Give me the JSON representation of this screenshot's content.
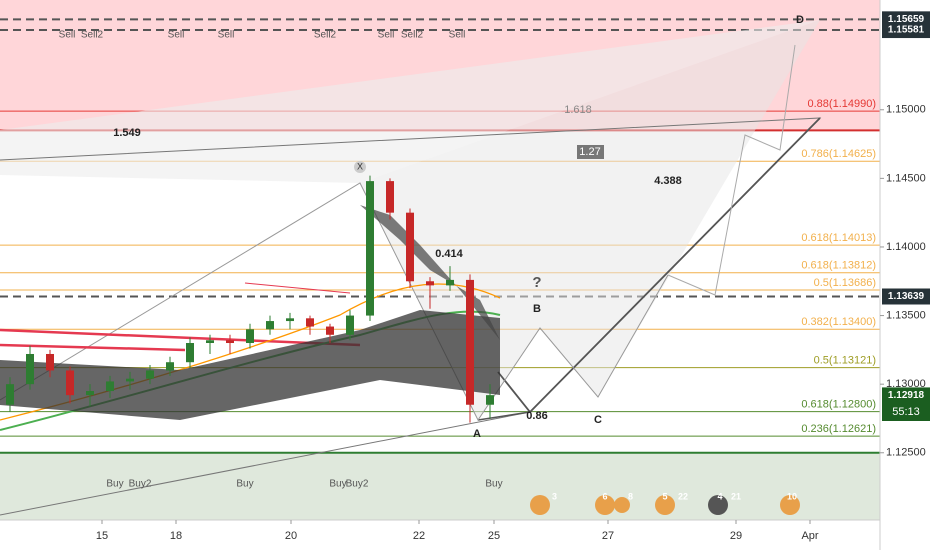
{
  "chart_data": {
    "type": "candlestick",
    "x": [
      1,
      3,
      5,
      7,
      9,
      11,
      13,
      15,
      17,
      19,
      21,
      23,
      25,
      27,
      29,
      31,
      33,
      35,
      37,
      39,
      41,
      43,
      45,
      47,
      49
    ],
    "open": [
      1.1285,
      1.13,
      1.1322,
      1.131,
      1.1292,
      1.1295,
      1.1302,
      1.1304,
      1.131,
      1.1316,
      1.133,
      1.1332,
      1.133,
      1.134,
      1.1346,
      1.1348,
      1.1342,
      1.1336,
      1.135,
      1.1448,
      1.1425,
      1.1375,
      1.1372,
      1.1376,
      1.1285
    ],
    "high": [
      1.1305,
      1.1328,
      1.1325,
      1.1313,
      1.13,
      1.1306,
      1.1309,
      1.1314,
      1.132,
      1.1334,
      1.1336,
      1.1336,
      1.1344,
      1.135,
      1.1352,
      1.135,
      1.1344,
      1.1354,
      1.1452,
      1.145,
      1.1428,
      1.1378,
      1.1386,
      1.138,
      1.13
    ],
    "low": [
      1.128,
      1.1296,
      1.1305,
      1.1286,
      1.1284,
      1.129,
      1.1296,
      1.13,
      1.1306,
      1.1312,
      1.1322,
      1.1322,
      1.1326,
      1.1336,
      1.134,
      1.1336,
      1.133,
      1.1332,
      1.1346,
      1.142,
      1.137,
      1.1355,
      1.1368,
      1.1272,
      1.1275
    ],
    "close": [
      1.13,
      1.1322,
      1.131,
      1.1292,
      1.1295,
      1.1302,
      1.1304,
      1.131,
      1.1316,
      1.133,
      1.1332,
      1.133,
      1.134,
      1.1346,
      1.1348,
      1.1342,
      1.1336,
      1.135,
      1.1448,
      1.1425,
      1.1375,
      1.1372,
      1.1376,
      1.1285,
      1.1292
    ],
    "up_color": "#2e7d32",
    "down_color": "#c62828",
    "xlim": [
      0,
      88
    ],
    "xticks": [
      {
        "value": 10.2,
        "label": "15"
      },
      {
        "value": 17.6,
        "label": "18"
      },
      {
        "value": 29.1,
        "label": "20"
      },
      {
        "value": 41.9,
        "label": "22"
      },
      {
        "value": 49.4,
        "label": "25"
      },
      {
        "value": 60.8,
        "label": "27"
      },
      {
        "value": 73.6,
        "label": "29"
      },
      {
        "value": 81,
        "label": "Apr"
      }
    ],
    "ylim": [
      1.1201,
      1.158
    ],
    "yticks": [
      {
        "value": 1.125,
        "label": "1.12500"
      },
      {
        "value": 1.13,
        "label": "1.13000"
      },
      {
        "value": 1.135,
        "label": "1.13500"
      },
      {
        "value": 1.14,
        "label": "1.14000"
      },
      {
        "value": 1.145,
        "label": "1.14500"
      },
      {
        "value": 1.15,
        "label": "1.15000"
      }
    ],
    "zones": [
      {
        "from": 1.1485,
        "to": 1.158,
        "color": "#ffd6d9"
      },
      {
        "from": 1.1201,
        "to": 1.125,
        "color": "#dfe8dc"
      }
    ],
    "levels": [
      {
        "value": 1.1499,
        "label": "0.88(1.14990)",
        "color": "#e53935"
      },
      {
        "value": 1.14625,
        "label": "0.786(1.14625)",
        "color": "#f2b04c"
      },
      {
        "value": 1.14013,
        "label": "0.618(1.14013)",
        "color": "#f2b04c"
      },
      {
        "value": 1.13812,
        "label": "0.618(1.13812)",
        "color": "#f2b04c"
      },
      {
        "value": 1.13686,
        "label": "0.5(1.13686)",
        "color": "#f2b04c"
      },
      {
        "value": 1.134,
        "label": "0.382(1.13400)",
        "color": "#f2b04c"
      },
      {
        "value": 1.13121,
        "label": "0.5(1.13121)",
        "color": "#9e9d24"
      },
      {
        "value": 1.128,
        "label": "0.618(1.12800)",
        "color": "#558b2f"
      },
      {
        "value": 1.12621,
        "label": "0.236(1.12621)",
        "color": "#558b2f"
      }
    ],
    "dashed_levels": [
      1.15659,
      1.15581,
      1.13639
    ],
    "strong_levels": [
      {
        "value": 1.1485,
        "color": "#d32f2f"
      },
      {
        "value": 1.125,
        "color": "#2e7d32"
      }
    ],
    "price_labels": [
      {
        "value": 1.15659,
        "label": "1.15659",
        "color": "#263238"
      },
      {
        "value": 1.15581,
        "label": "1.15581",
        "color": "#263238"
      },
      {
        "value": 1.13639,
        "label": "1.13639",
        "color": "#263238"
      },
      {
        "value": 1.12918,
        "label": "1.12918",
        "color": "#1b5e20"
      }
    ],
    "countdown": "55:13",
    "signals": [
      "Sell",
      "Sell2",
      "Sell",
      "Sell",
      "Sell2",
      "Sell",
      "Sell2",
      "Sell",
      "Buy",
      "Buy2",
      "Buy",
      "Buy",
      "Buy2",
      "Buy"
    ],
    "annotations": [
      "1.549",
      "1.618",
      "1.27",
      "4.388",
      "0.414",
      "?",
      "B",
      "0.86",
      "A",
      "C",
      "D",
      "X"
    ],
    "events": [
      "3",
      "6",
      "8",
      "5",
      "22",
      "4",
      "21",
      "10"
    ]
  }
}
